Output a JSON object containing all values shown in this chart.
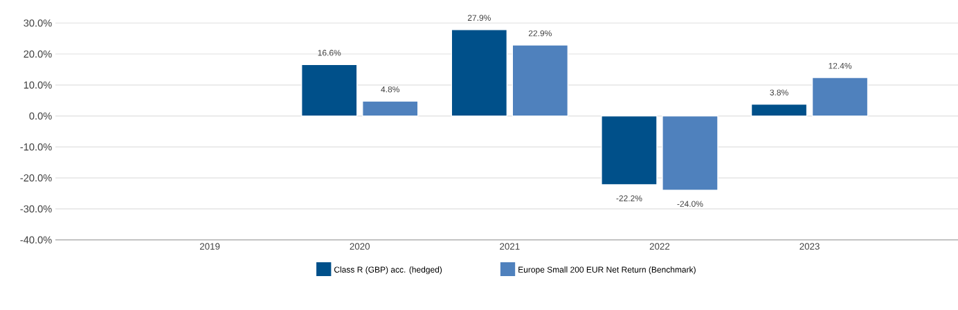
{
  "chart_data": {
    "type": "bar",
    "categories": [
      "2019",
      "2020",
      "2021",
      "2022",
      "2023"
    ],
    "series": [
      {
        "name": "Class R (GBP) acc. (hedged)",
        "color": "#00508a",
        "values": [
          null,
          16.6,
          27.9,
          -22.2,
          3.8
        ],
        "value_labels": [
          null,
          "16.6%",
          "27.9%",
          "-22.2%",
          "3.8%"
        ]
      },
      {
        "name": "Europe Small 200 EUR Net Return (Benchmark)",
        "color": "#4f81bd",
        "values": [
          null,
          4.8,
          22.9,
          -24.0,
          12.4
        ],
        "value_labels": [
          null,
          "4.8%",
          "22.9%",
          "-24.0%",
          "12.4%"
        ]
      }
    ],
    "ylim": [
      -40,
      30
    ],
    "yticks": [
      {
        "value": -40,
        "label": "-40.0%"
      },
      {
        "value": -30,
        "label": "-30.0%"
      },
      {
        "value": -20,
        "label": "-20.0%"
      },
      {
        "value": -10,
        "label": "-10.0%"
      },
      {
        "value": 0,
        "label": "0.0%"
      },
      {
        "value": 10,
        "label": "10.0%"
      },
      {
        "value": 20,
        "label": "20.0%"
      },
      {
        "value": 30,
        "label": "30.0%"
      }
    ],
    "grid": "y",
    "legend": "bottom"
  }
}
